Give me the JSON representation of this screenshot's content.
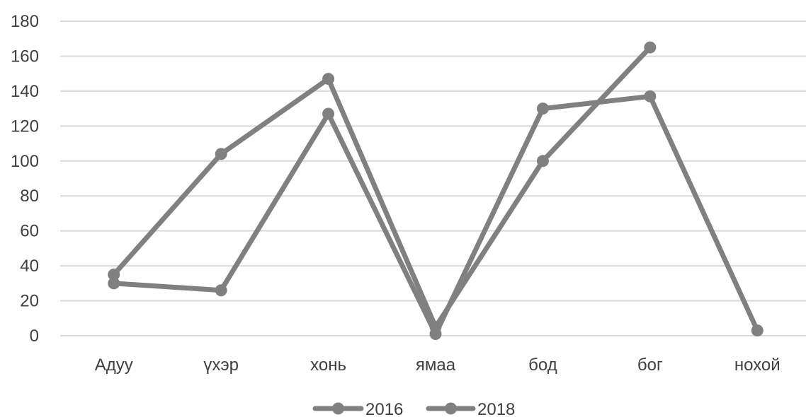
{
  "chart_data": {
    "type": "line",
    "categories": [
      "Адуу",
      "үхэр",
      "хонь",
      "ямаа",
      "бод",
      "бог",
      "нохой"
    ],
    "ylim": [
      0,
      180
    ],
    "yticks": [
      0,
      20,
      40,
      60,
      80,
      100,
      120,
      140,
      160,
      180
    ],
    "grid": true,
    "legend_position": "bottom",
    "series": [
      {
        "name": "2016",
        "values": [
          30,
          26,
          127,
          1,
          130,
          137,
          3
        ]
      },
      {
        "name": "2018",
        "values": [
          35,
          104,
          147,
          5,
          100,
          165,
          null
        ]
      }
    ],
    "colors": {
      "series": "#808080",
      "grid": "#d9d9d9",
      "text": "#404040"
    }
  }
}
